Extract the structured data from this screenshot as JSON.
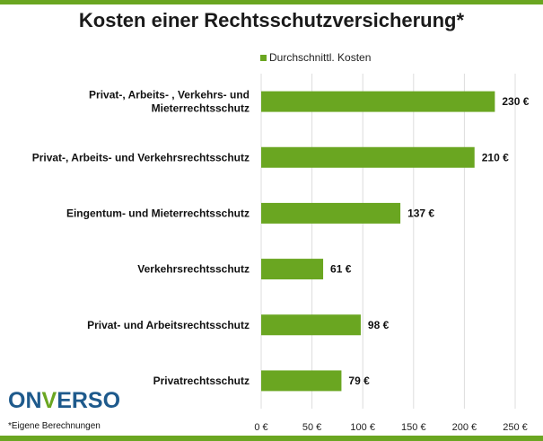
{
  "chart_data": {
    "type": "bar",
    "orientation": "horizontal",
    "title": "Kosten einer Rechtsschutzversicherung*",
    "series": [
      {
        "name": "Durchschnittl. Kosten",
        "color": "#6aa621"
      }
    ],
    "categories": [
      [
        "Privat-, Arbeits- , Verkehrs- und",
        "Mieterrechtsschutz"
      ],
      [
        "Privat-, Arbeits- und Verkehrsrechtsschutz"
      ],
      [
        "Eingentum- und Mieterrechtsschutz"
      ],
      [
        "Verkehrsrechtsschutz"
      ],
      [
        "Privat- und Arbeitsrechtsschutz"
      ],
      [
        "Privatrechtsschutz"
      ]
    ],
    "values": [
      230,
      210,
      137,
      61,
      98,
      79
    ],
    "value_labels": [
      "230 €",
      "210 €",
      "137 €",
      "61 €",
      "98 €",
      "79 €"
    ],
    "xlim": [
      0,
      250
    ],
    "xticks": [
      0,
      50,
      100,
      150,
      200,
      250
    ],
    "xtick_labels": [
      "0 €",
      "50 €",
      "100 €",
      "150 €",
      "200 €",
      "250 €"
    ],
    "grid": true,
    "legend_position": "top"
  },
  "branding": {
    "logo_on": "ON",
    "logo_v": "V",
    "logo_erso": "ERSO"
  },
  "footnote": "*Eigene Berechnungen",
  "colors": {
    "accent": "#6aa621",
    "logo_blue": "#1e5a8c",
    "grid": "#dddddd"
  }
}
